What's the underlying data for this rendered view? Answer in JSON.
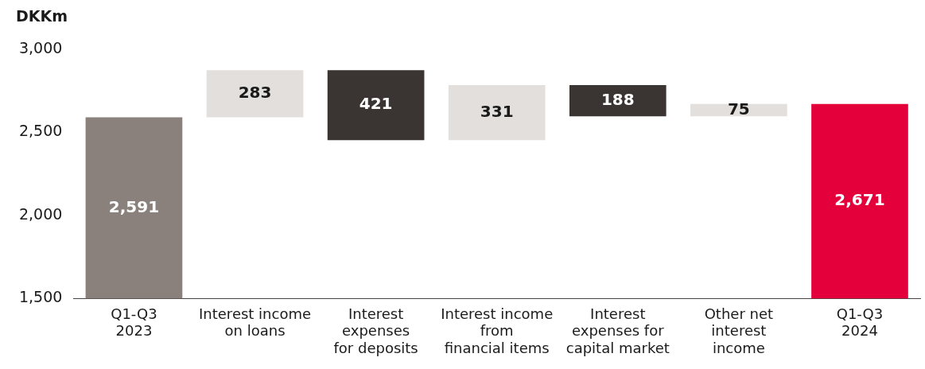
{
  "chart_data": {
    "type": "bar",
    "ylabel": "DKKm",
    "categories": [
      "Q1-Q3\n2023",
      "Interest income\non loans",
      "Interest\nexpenses\nfor deposits",
      "Interest income\nfrom\nfinancial items",
      "Interest\nexpenses for\ncapital market",
      "Other net\ninterest\nincome",
      "Q1-Q3\n2024"
    ],
    "values": [
      2591,
      283,
      421,
      331,
      188,
      75,
      2671
    ],
    "base": [
      null,
      2591,
      2453,
      2453,
      2596,
      2596,
      null
    ],
    "colors": [
      "#8a817c",
      "#e3dfdc",
      "#3a3532",
      "#e3dfdc",
      "#3a3532",
      "#e3dfdc",
      "#e4003b"
    ],
    "value_labels": [
      "2,591",
      "283",
      "421",
      "331",
      "188",
      "75",
      "2,671"
    ],
    "ylim": [
      1500,
      3000
    ],
    "yticks": [
      {
        "value": 1500,
        "label": "1,500"
      },
      {
        "value": 2000,
        "label": "2,000"
      },
      {
        "value": 2500,
        "label": "2,500"
      },
      {
        "value": 3000,
        "label": "3,000"
      }
    ],
    "grid": false,
    "legend": false
  }
}
